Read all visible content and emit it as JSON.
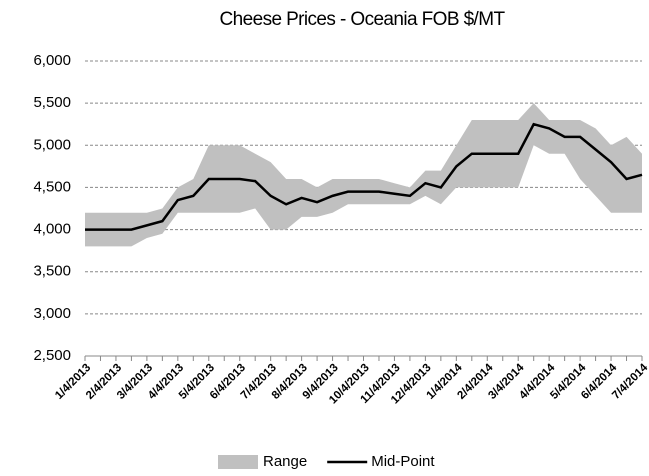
{
  "chart_data": {
    "type": "range-line",
    "title": "Cheese Prices - Oceania FOB $/MT",
    "categories": [
      "1/4/2013",
      null,
      "2/4/2013",
      null,
      "3/4/2013",
      null,
      "4/4/2013",
      null,
      "5/4/2013",
      null,
      "6/4/2013",
      null,
      "7/4/2013",
      null,
      "8/4/2013",
      null,
      "9/4/2013",
      null,
      "10/4/2013",
      null,
      "11/4/2013",
      null,
      "12/4/2013",
      null,
      "1/4/2014",
      null,
      "2/4/2014",
      null,
      "3/4/2014",
      null,
      "4/4/2014",
      null,
      "5/4/2014",
      null,
      "6/4/2014",
      null,
      "7/4/2014"
    ],
    "series": [
      {
        "name": "Range",
        "color": "#c0c0c0",
        "low": [
          3800,
          3800,
          3800,
          3800,
          3900,
          3950,
          4200,
          4200,
          4200,
          4200,
          4200,
          4250,
          4000,
          4000,
          4150,
          4150,
          4200,
          4300,
          4300,
          4300,
          4300,
          4300,
          4400,
          4300,
          4500,
          4500,
          4500,
          4500,
          4500,
          5000,
          4900,
          4900,
          4600,
          4400,
          4200,
          4200,
          4200
        ],
        "high": [
          4200,
          4200,
          4200,
          4200,
          4200,
          4250,
          4500,
          4600,
          5000,
          5000,
          5000,
          4900,
          4800,
          4600,
          4600,
          4500,
          4600,
          4600,
          4600,
          4600,
          4550,
          4500,
          4700,
          4700,
          5000,
          5300,
          5300,
          5300,
          5300,
          5500,
          5300,
          5300,
          5300,
          5200,
          5000,
          5100,
          4900
        ]
      },
      {
        "name": "Mid-Point",
        "color": "#000000",
        "values": [
          4000,
          4000,
          4000,
          4000,
          4050,
          4100,
          4350,
          4400,
          4600,
          4600,
          4600,
          4575,
          4400,
          4300,
          4375,
          4325,
          4400,
          4450,
          4450,
          4450,
          4425,
          4400,
          4550,
          4500,
          4750,
          4900,
          4900,
          4900,
          4900,
          5250,
          5200,
          5100,
          5100,
          4950,
          4800,
          4600,
          4650
        ]
      }
    ],
    "ylim": [
      2500,
      6000
    ],
    "yticks": [
      {
        "value": 2500,
        "label": "2,500"
      },
      {
        "value": 3000,
        "label": "3,000"
      },
      {
        "value": 3500,
        "label": "3,500"
      },
      {
        "value": 4000,
        "label": "4,000"
      },
      {
        "value": 4500,
        "label": "4,500"
      },
      {
        "value": 5000,
        "label": "5,000"
      },
      {
        "value": 5500,
        "label": "5,500"
      },
      {
        "value": 6000,
        "label": "6,000"
      }
    ],
    "grid": true,
    "legend": "bottom"
  }
}
